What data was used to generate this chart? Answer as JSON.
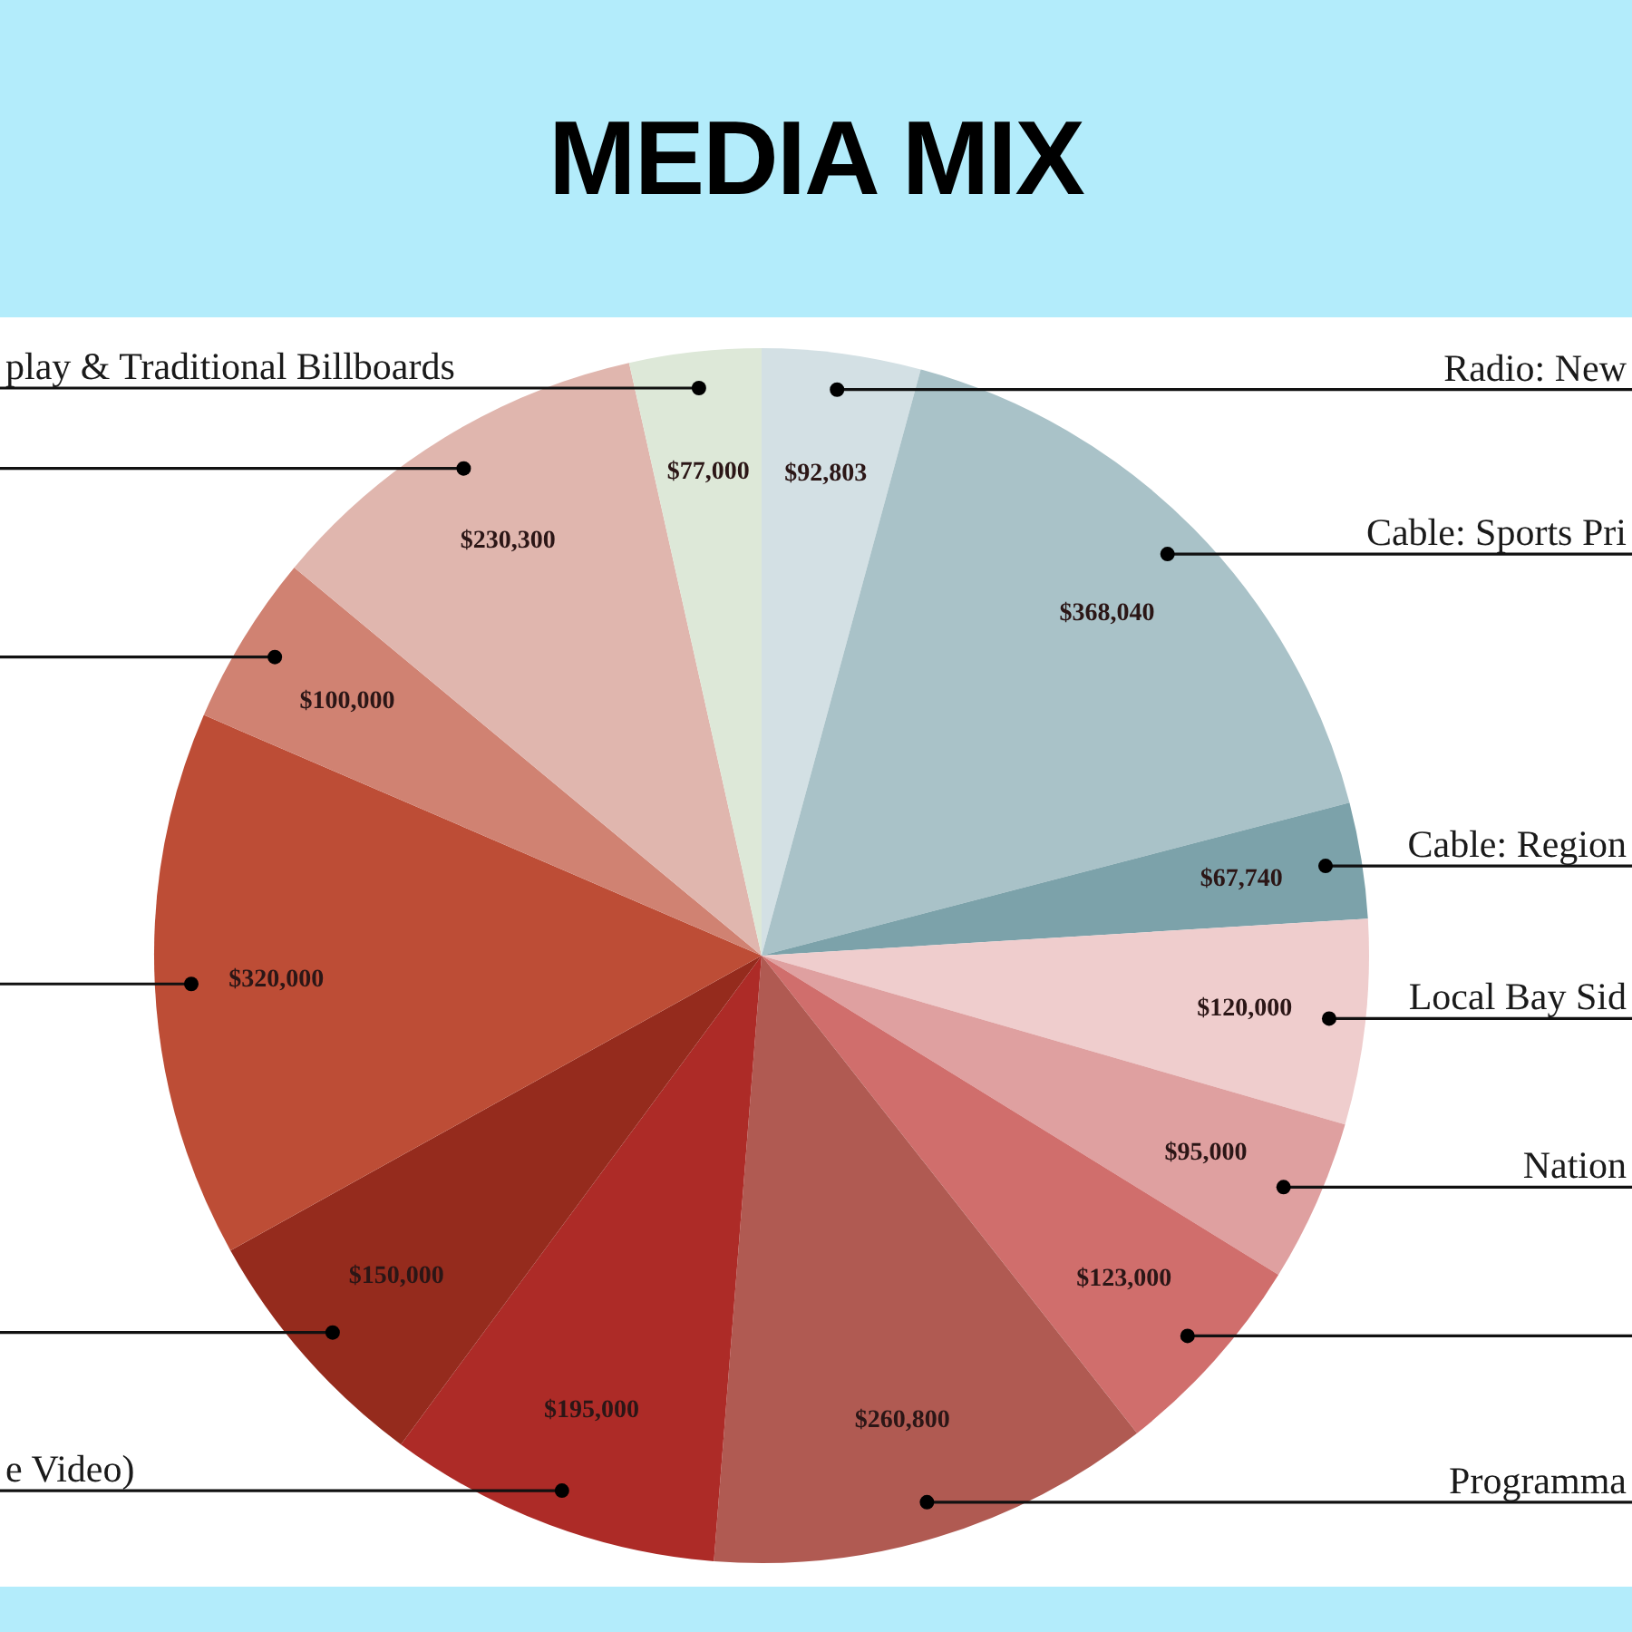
{
  "chart_data": {
    "type": "pie",
    "title": "MEDIA MIX",
    "categories": [
      "Radio: New",
      "Cable: Sports Pri",
      "Cable: Region",
      "Local Bay Sid",
      "Nation",
      null,
      "Programma",
      "e Video)",
      null,
      null,
      null,
      null,
      "play & Traditional Billboards"
    ],
    "values": [
      92803,
      368040,
      67740,
      120000,
      95000,
      123000,
      260800,
      195000,
      150000,
      320000,
      100000,
      230300,
      77000
    ],
    "colors": [
      "#d3e0e4",
      "#a9c2c8",
      "#7ca2aa",
      "#efcdcd",
      "#dfa0a0",
      "#d06e6c",
      "#b05a52",
      "#ad2b27",
      "#952b1d",
      "#bd4d36",
      "#d08272",
      "#e0b6ae",
      "#dde8d8"
    ],
    "value_labels": [
      "$92,803",
      "$368,040",
      "$67,740",
      "$120,000",
      "$95,000",
      "$123,000",
      "$260,800",
      "$195,000",
      "$150,000",
      "$320,000",
      "$100,000",
      "$230,300",
      "$77,000"
    ],
    "legend": false
  }
}
